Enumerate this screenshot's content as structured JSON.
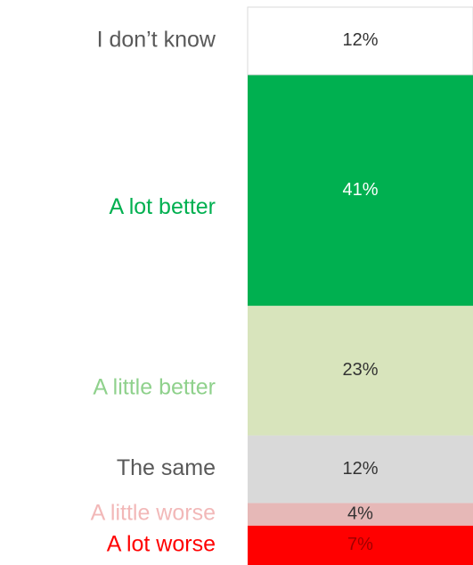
{
  "chart_data": {
    "type": "bar",
    "stacked": true,
    "series": [
      {
        "name": "A lot worse",
        "color": "#ff0000",
        "label_color": "#ff0000",
        "text_color": "#a00000",
        "values": [
          7
        ],
        "value_labels": [
          "7%"
        ]
      },
      {
        "name": "A little worse",
        "color": "#e6b8b7",
        "label_color": "#f2b8b8",
        "text_color": "#333333",
        "values": [
          4
        ],
        "value_labels": [
          "4%"
        ]
      },
      {
        "name": "The same",
        "color": "#d9d9d9",
        "label_color": "#595959",
        "text_color": "#333333",
        "values": [
          12
        ],
        "value_labels": [
          "12%"
        ]
      },
      {
        "name": "A little better",
        "color": "#d8e4bc",
        "label_color": "#8fd18c",
        "text_color": "#333333",
        "values": [
          23
        ],
        "value_labels": [
          "23%"
        ]
      },
      {
        "name": "A lot better",
        "color": "#00b050",
        "label_color": "#00b050",
        "text_color": "#ffffff",
        "values": [
          41
        ],
        "value_labels": [
          "41%"
        ]
      },
      {
        "name": "I don’t know",
        "color": "#ffffff",
        "label_color": "#595959",
        "text_color": "#333333",
        "values": [
          12
        ],
        "value_labels": [
          "12%"
        ]
      }
    ]
  }
}
